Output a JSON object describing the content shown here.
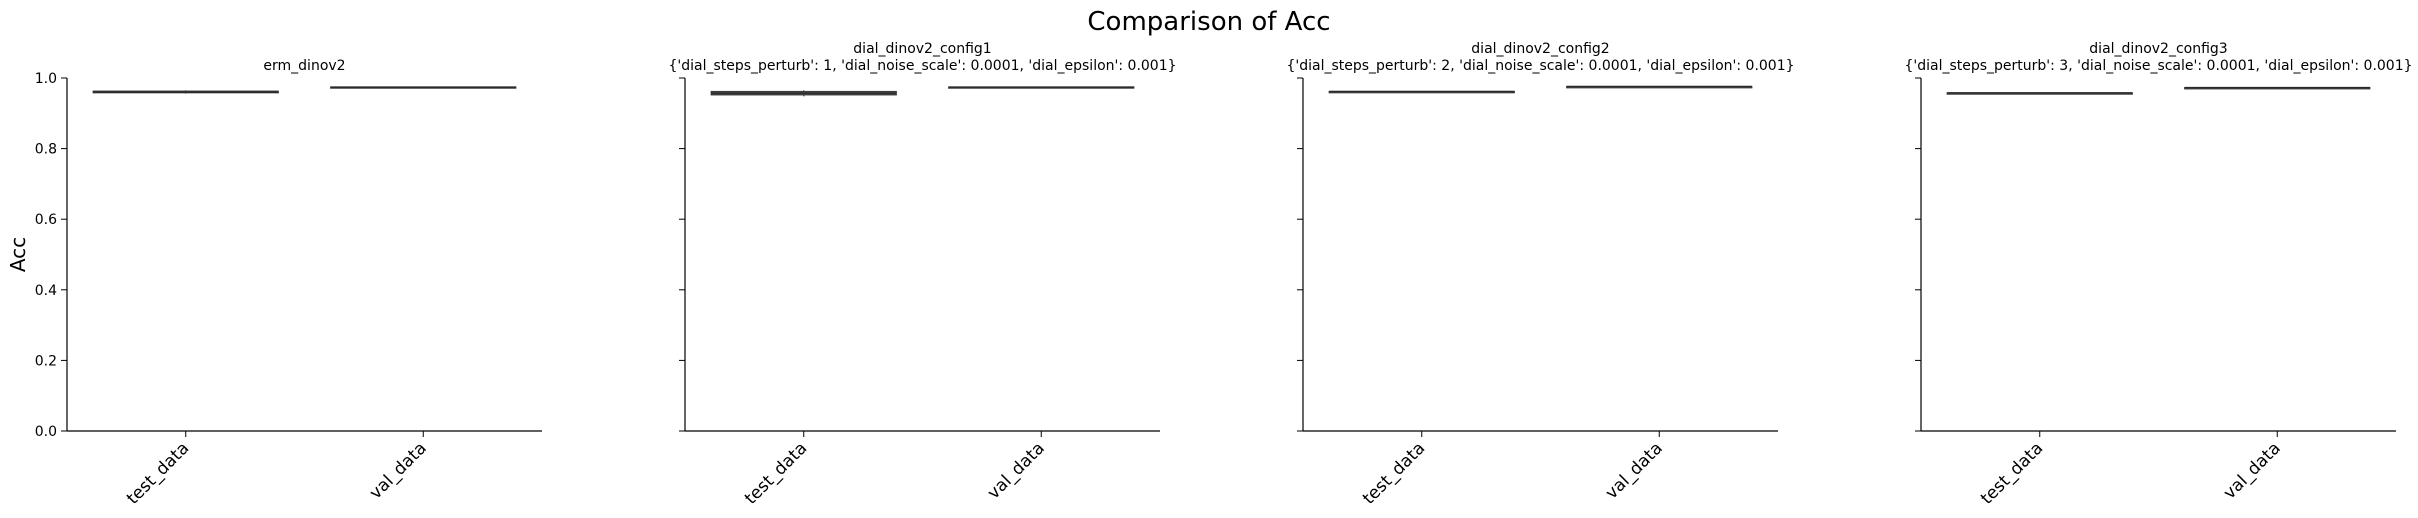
{
  "figure": {
    "suptitle": "Comparison of Acc"
  },
  "chart_data": [
    {
      "type": "box",
      "title": "erm_dinov2",
      "subtitle": "",
      "ylabel": "Acc",
      "ylim": [
        0,
        1
      ],
      "yticks": [
        "0.0",
        "0.2",
        "0.4",
        "0.6",
        "0.8",
        "1.0"
      ],
      "categories": [
        "test_data",
        "val_data"
      ],
      "series": [
        {
          "category": "test_data",
          "q1": 0.958,
          "median": 0.96,
          "q3": 0.963,
          "whisker_low": 0.956,
          "whisker_high": 0.965
        },
        {
          "category": "val_data",
          "q1": 0.972,
          "median": 0.973,
          "q3": 0.975,
          "whisker_low": 0.971,
          "whisker_high": 0.976
        }
      ]
    },
    {
      "type": "box",
      "title": "dial_dinov2_config1",
      "subtitle": "{'dial_steps_perturb': 1, 'dial_noise_scale': 0.0001, 'dial_epsilon': 0.001}",
      "ylabel": "",
      "ylim": [
        0,
        1
      ],
      "yticks": [
        "0.0",
        "0.2",
        "0.4",
        "0.6",
        "0.8",
        "1.0"
      ],
      "categories": [
        "test_data",
        "val_data"
      ],
      "series": [
        {
          "category": "test_data",
          "q1": 0.952,
          "median": 0.957,
          "q3": 0.962,
          "whisker_low": 0.948,
          "whisker_high": 0.965
        },
        {
          "category": "val_data",
          "q1": 0.973,
          "median": 0.974,
          "q3": 0.975,
          "whisker_low": 0.973,
          "whisker_high": 0.975
        }
      ]
    },
    {
      "type": "box",
      "title": "dial_dinov2_config2",
      "subtitle": "{'dial_steps_perturb': 2, 'dial_noise_scale': 0.0001, 'dial_epsilon': 0.001}",
      "ylabel": "",
      "ylim": [
        0,
        1
      ],
      "yticks": [
        "0.0",
        "0.2",
        "0.4",
        "0.6",
        "0.8",
        "1.0"
      ],
      "categories": [
        "test_data",
        "val_data"
      ],
      "series": [
        {
          "category": "test_data",
          "q1": 0.962,
          "median": 0.962,
          "q3": 0.962,
          "whisker_low": 0.962,
          "whisker_high": 0.962
        },
        {
          "category": "val_data",
          "q1": 0.976,
          "median": 0.976,
          "q3": 0.976,
          "whisker_low": 0.976,
          "whisker_high": 0.976
        }
      ]
    },
    {
      "type": "box",
      "title": "dial_dinov2_config3",
      "subtitle": "{'dial_steps_perturb': 3, 'dial_noise_scale': 0.0001, 'dial_epsilon': 0.001}",
      "ylabel": "",
      "ylim": [
        0,
        1
      ],
      "yticks": [
        "0.0",
        "0.2",
        "0.4",
        "0.6",
        "0.8",
        "1.0"
      ],
      "categories": [
        "test_data",
        "val_data"
      ],
      "series": [
        {
          "category": "test_data",
          "q1": 0.958,
          "median": 0.958,
          "q3": 0.958,
          "whisker_low": 0.958,
          "whisker_high": 0.958
        },
        {
          "category": "val_data",
          "q1": 0.973,
          "median": 0.973,
          "q3": 0.973,
          "whisker_low": 0.973,
          "whisker_high": 0.973
        }
      ]
    }
  ],
  "style": {
    "box_fill": "#4c4c4c",
    "box_edge": "#3a3a3a",
    "axis_color": "#000000"
  }
}
